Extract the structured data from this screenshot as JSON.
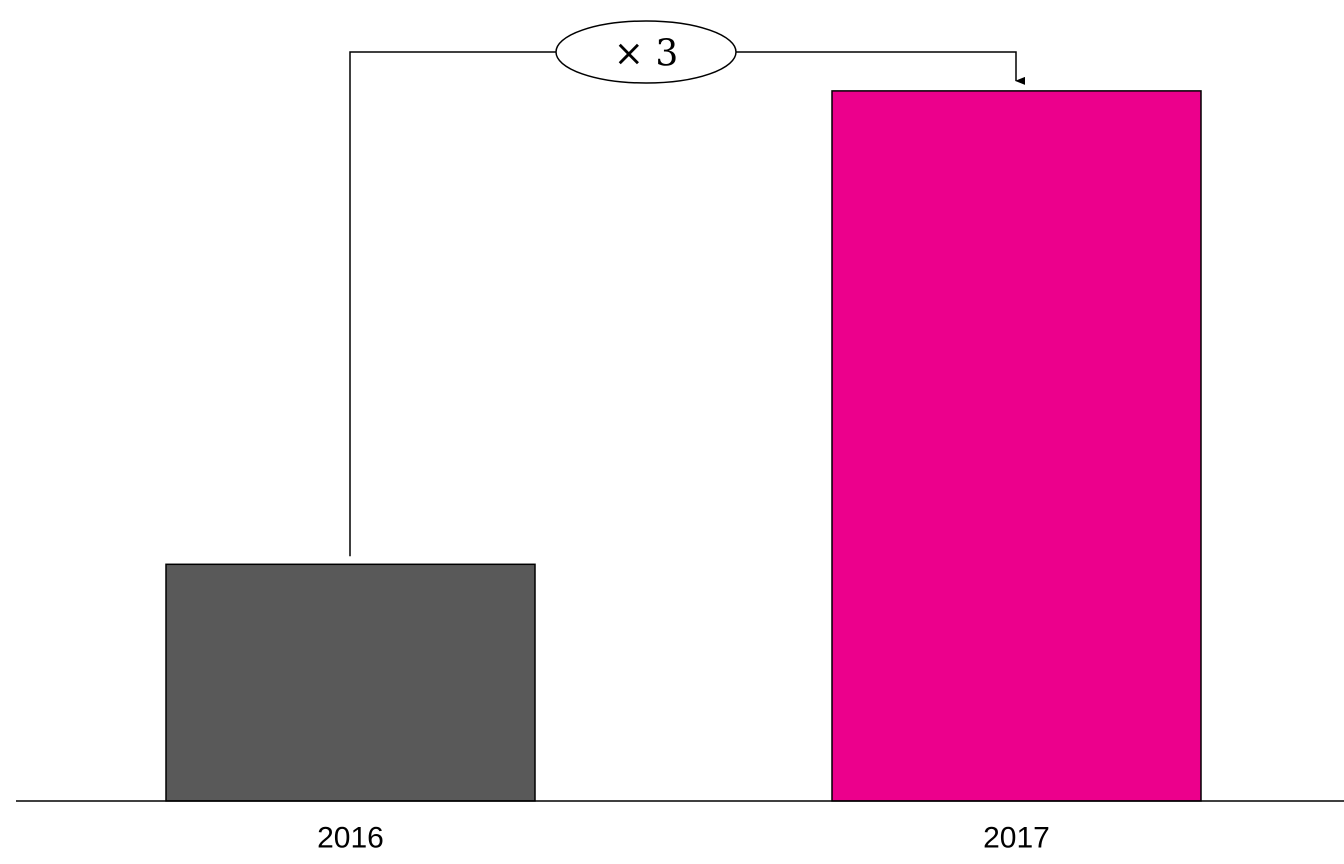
{
  "chart_data": {
    "type": "bar",
    "categories": [
      "2016",
      "2017"
    ],
    "values": [
      1,
      3
    ],
    "colors": [
      "#595959",
      "#EC008C"
    ],
    "annotation": {
      "text": "× 3",
      "from": "2016",
      "to": "2017"
    },
    "grid": false,
    "legend": "none"
  }
}
